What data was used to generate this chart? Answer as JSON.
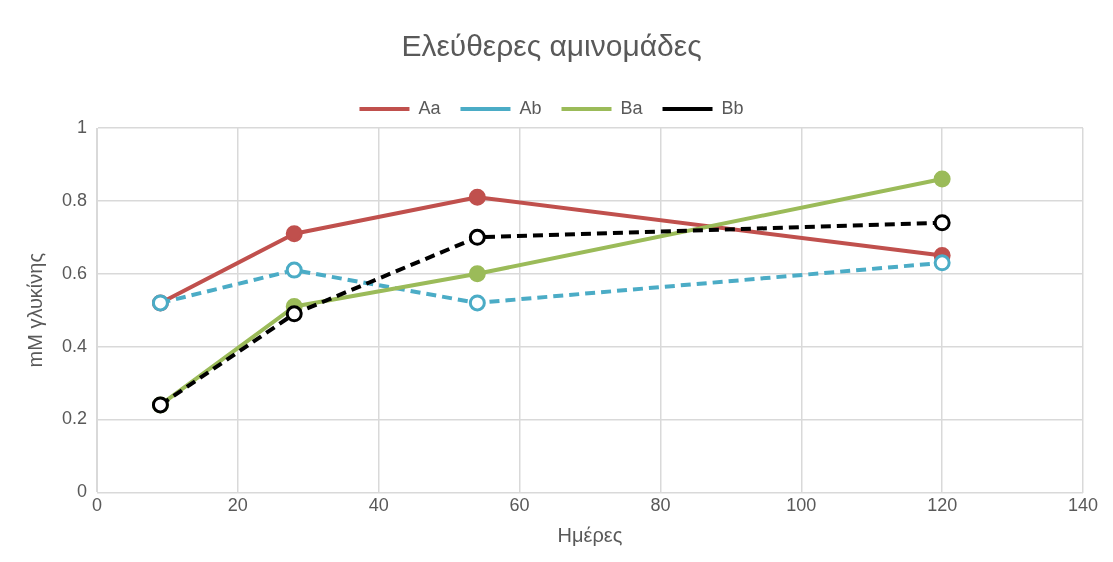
{
  "chart_data": {
    "type": "line",
    "title": "Ελεύθερες αμινομάδες",
    "xlabel": "Ημέρες",
    "ylabel": "mM γλυκίνης",
    "x": [
      9,
      28,
      54,
      120
    ],
    "series": [
      {
        "name": "Aa",
        "color": "#c0504d",
        "values": [
          0.52,
          0.71,
          0.81,
          0.65
        ],
        "line_style": "solid",
        "marker": "circle"
      },
      {
        "name": "Ab",
        "color": "#4bacc6",
        "values": [
          0.52,
          0.61,
          0.52,
          0.63
        ],
        "line_style": "dashed",
        "marker": "circle"
      },
      {
        "name": "Ba",
        "color": "#9bbb59",
        "values": [
          0.24,
          0.51,
          0.6,
          0.86
        ],
        "line_style": "solid",
        "marker": "circle"
      },
      {
        "name": "Bb",
        "color": "#000000",
        "values": [
          0.24,
          0.49,
          0.7,
          0.74
        ],
        "line_style": "dashed",
        "marker": "circle"
      }
    ],
    "xlim": [
      0,
      140
    ],
    "xticks": [
      0,
      20,
      40,
      60,
      80,
      100,
      120,
      140
    ],
    "ylim": [
      0,
      1
    ],
    "yticks": [
      0,
      0.2,
      0.4,
      0.6,
      0.8,
      1
    ],
    "grid": true,
    "legend": "top"
  }
}
